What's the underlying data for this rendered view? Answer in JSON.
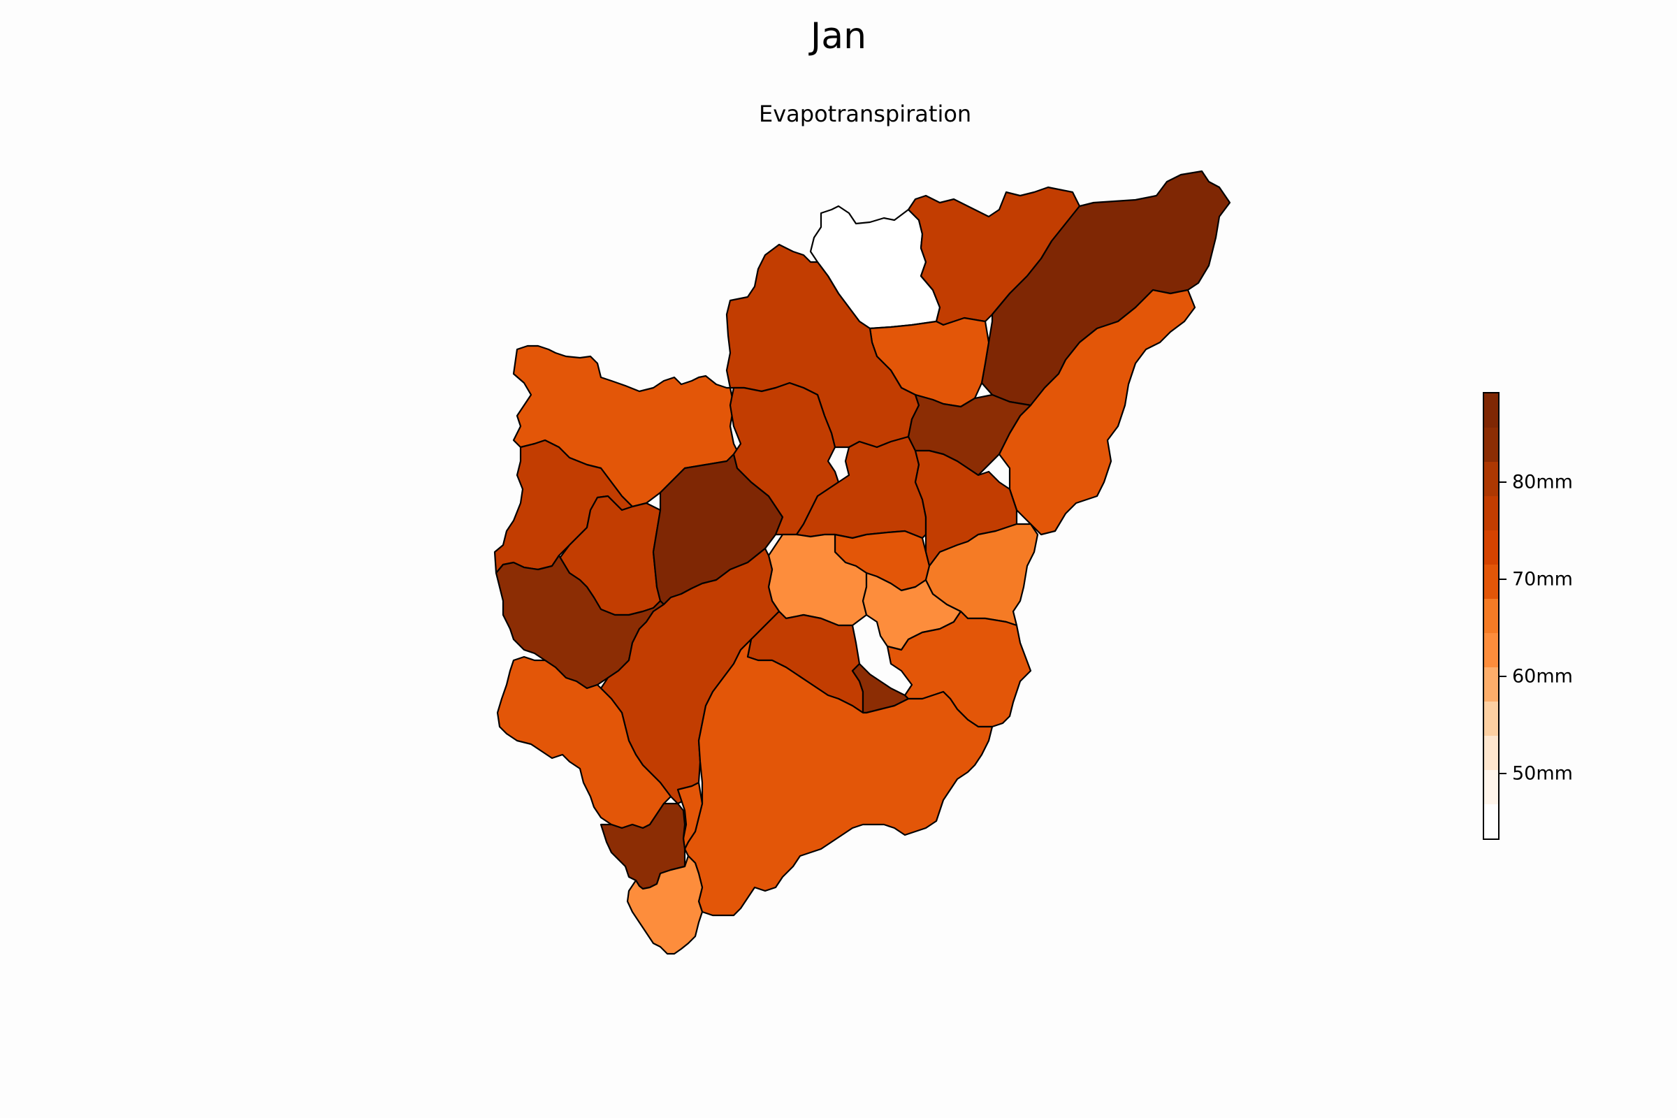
{
  "title": "Jan",
  "subtitle": "Evapotranspiration",
  "colors": {
    "c44": "#ffffff",
    "c63": "#e35608",
    "c70": "#d54300",
    "c76": "#ad3802",
    "c84": "#8c2d04",
    "c88": "#7f2704"
  },
  "colorbar": {
    "min": 43,
    "max": 89,
    "steps": [
      "#ffffff",
      "#fff5eb",
      "#fee6ce",
      "#fdd0a2",
      "#fdae6b",
      "#fd8d3c",
      "#f57b25",
      "#e35608",
      "#d54300",
      "#c23d01",
      "#ad3802",
      "#8c2d04",
      "#7f2704"
    ],
    "ticks": [
      {
        "value": 50,
        "label": "50mm"
      },
      {
        "value": 60,
        "label": "60mm"
      },
      {
        "value": 70,
        "label": "70mm"
      },
      {
        "value": 80,
        "label": "80mm"
      }
    ]
  },
  "regions": [
    {
      "id": "north-center-white",
      "value": 44
    },
    {
      "id": "north-east-top",
      "value": 77
    },
    {
      "id": "far-north-east",
      "value": 88
    },
    {
      "id": "east-strip",
      "value": 70
    },
    {
      "id": "north-middle-small",
      "value": 71
    },
    {
      "id": "north-center-large",
      "value": 77
    },
    {
      "id": "north-west-large",
      "value": 70
    },
    {
      "id": "west-upper",
      "value": 77
    },
    {
      "id": "west-inner",
      "value": 78
    },
    {
      "id": "center-dark",
      "value": 88
    },
    {
      "id": "center-north-2",
      "value": 77
    },
    {
      "id": "center-east-1",
      "value": 77
    },
    {
      "id": "east-mid-dark",
      "value": 84
    },
    {
      "id": "east-mid-2",
      "value": 77
    },
    {
      "id": "center-small-1",
      "value": 71
    },
    {
      "id": "center-light-1",
      "value": 63
    },
    {
      "id": "center-light-2",
      "value": 64
    },
    {
      "id": "east-light",
      "value": 66
    },
    {
      "id": "west-dark-lower",
      "value": 84
    },
    {
      "id": "center-south-1",
      "value": 77
    },
    {
      "id": "center-south-2",
      "value": 77
    },
    {
      "id": "center-south-3",
      "value": 84
    },
    {
      "id": "east-south",
      "value": 70
    },
    {
      "id": "west-south",
      "value": 70
    },
    {
      "id": "south-large",
      "value": 70
    },
    {
      "id": "south-narrow",
      "value": 71
    },
    {
      "id": "south-dark",
      "value": 84
    },
    {
      "id": "south-tip",
      "value": 63
    }
  ]
}
